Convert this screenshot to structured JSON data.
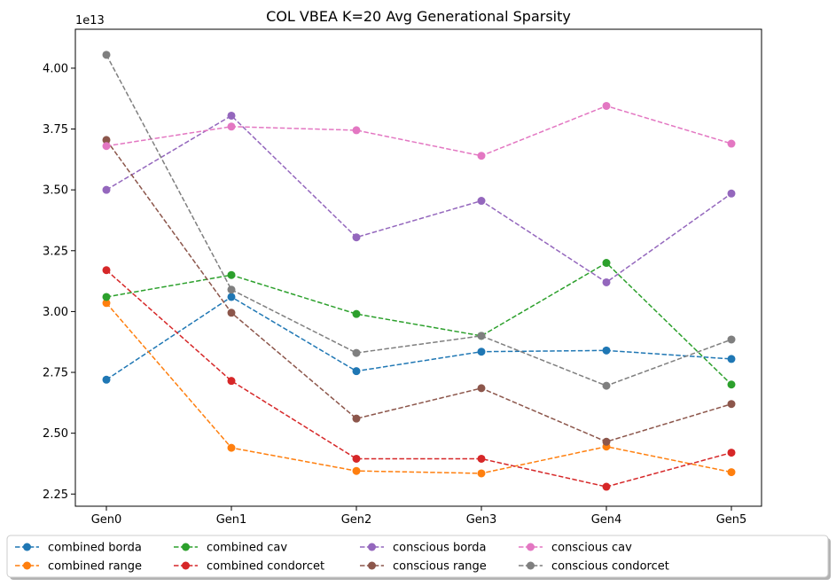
{
  "chart_data": {
    "type": "line",
    "title": "COL VBEA K=20 Avg Generational Sparsity",
    "xlabel": "",
    "ylabel": "",
    "y_multiplier_label": "1e13",
    "categories": [
      "Gen0",
      "Gen1",
      "Gen2",
      "Gen3",
      "Gen4",
      "Gen5"
    ],
    "ylim": [
      2.2,
      4.16
    ],
    "yticks": [
      2.25,
      2.5,
      2.75,
      3.0,
      3.25,
      3.5,
      3.75,
      4.0
    ],
    "ytick_labels": [
      "2.25",
      "2.50",
      "2.75",
      "3.00",
      "3.25",
      "3.50",
      "3.75",
      "4.00"
    ],
    "grid": false,
    "legend_placement": "bottom-center",
    "line_style": "dashed",
    "marker": "circle",
    "series": [
      {
        "name": "combined borda",
        "color": "#1f77b4",
        "values": [
          2.72,
          3.06,
          2.755,
          2.835,
          2.84,
          2.805
        ]
      },
      {
        "name": "combined range",
        "color": "#ff7f0e",
        "values": [
          3.035,
          2.44,
          2.345,
          2.335,
          2.445,
          2.34
        ]
      },
      {
        "name": "combined cav",
        "color": "#2ca02c",
        "values": [
          3.06,
          3.15,
          2.99,
          2.9,
          3.2,
          2.7
        ]
      },
      {
        "name": "combined condorcet",
        "color": "#d62728",
        "values": [
          3.17,
          2.715,
          2.395,
          2.395,
          2.28,
          2.42
        ]
      },
      {
        "name": "conscious borda",
        "color": "#9467bd",
        "values": [
          3.5,
          3.805,
          3.305,
          3.455,
          3.12,
          3.485
        ]
      },
      {
        "name": "conscious range",
        "color": "#8c564b",
        "values": [
          3.705,
          2.995,
          2.56,
          2.685,
          2.465,
          2.62
        ]
      },
      {
        "name": "conscious cav",
        "color": "#e377c2",
        "values": [
          3.68,
          3.76,
          3.745,
          3.64,
          3.845,
          3.69
        ]
      },
      {
        "name": "conscious condorcet",
        "color": "#7f7f7f",
        "values": [
          4.055,
          3.09,
          2.83,
          2.9,
          2.695,
          2.885
        ]
      }
    ]
  }
}
